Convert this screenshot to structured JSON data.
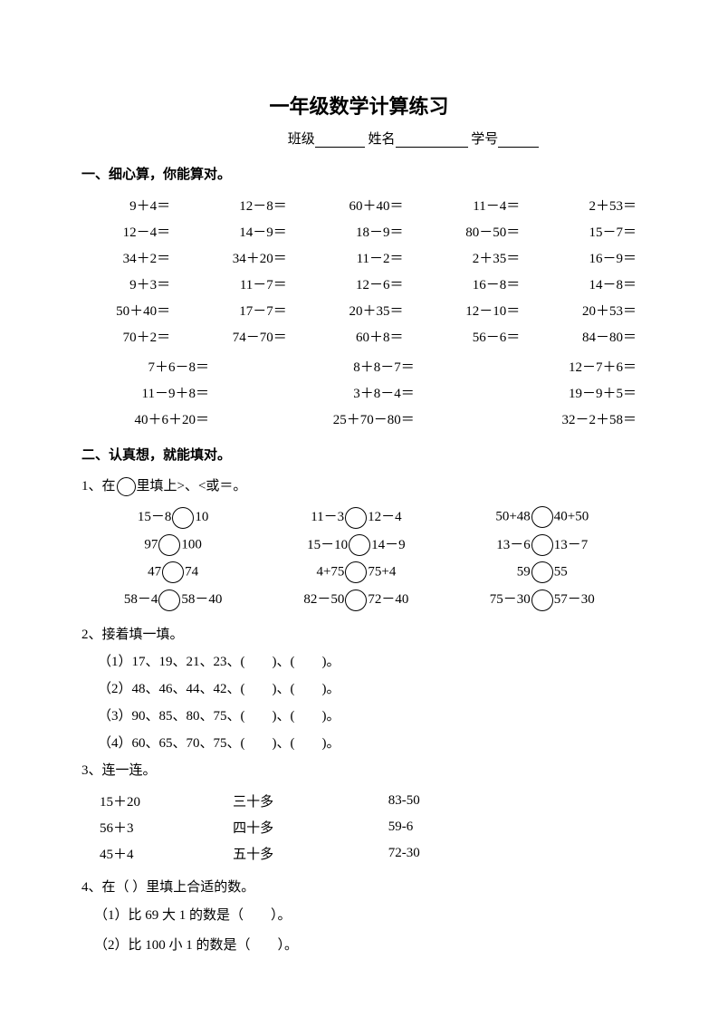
{
  "title": "一年级数学计算练习",
  "info": {
    "class_label": "班级",
    "name_label": "姓名",
    "id_label": "学号"
  },
  "section1": {
    "heading": "一、细心算，你能算对。",
    "rows5": [
      [
        "9＋4＝",
        "12－8＝",
        "60＋40＝",
        "11－4＝",
        "2＋53＝"
      ],
      [
        "12－4＝",
        "14－9＝",
        "18－9＝",
        "80－50＝",
        "15－7＝"
      ],
      [
        "34＋2＝",
        "34＋20＝",
        "11－2＝",
        "2＋35＝",
        "16－9＝"
      ],
      [
        "9＋3＝",
        "11－7＝",
        "12－6＝",
        "16－8＝",
        "14－8＝"
      ],
      [
        "50＋40＝",
        "17－7＝",
        "20＋35＝",
        "12－10＝",
        "20＋53＝"
      ],
      [
        "70＋2＝",
        "74－70＝",
        "60＋8＝",
        "56－6＝",
        "84－80＝"
      ]
    ],
    "rows3": [
      [
        "7＋6－8＝",
        "8＋8－7＝",
        "12－7＋6＝"
      ],
      [
        "11－9＋8＝",
        "3＋8－4＝",
        "19－9＋5＝"
      ],
      [
        "40＋6＋20＝",
        "25＋70－80＝",
        "32－2＋58＝"
      ]
    ]
  },
  "section2": {
    "heading": "二、认真想，就能填对。",
    "q1": {
      "stem_a": "1、在",
      "stem_b": "里填上>、<或＝。",
      "rows": [
        [
          [
            "15－8",
            "10"
          ],
          [
            "11－3",
            "12－4"
          ],
          [
            "50+48",
            "40+50"
          ]
        ],
        [
          [
            "97",
            "100"
          ],
          [
            "15－10",
            "14－9"
          ],
          [
            "13－6",
            "13－7"
          ]
        ],
        [
          [
            "47",
            "74"
          ],
          [
            "4+75",
            "75+4"
          ],
          [
            "59",
            "55"
          ]
        ],
        [
          [
            "58－4",
            "58－40"
          ],
          [
            "82－50",
            "72－40"
          ],
          [
            "75－30",
            "57－30"
          ]
        ]
      ]
    },
    "q2": {
      "stem": "2、接着填一填。",
      "lines": [
        "（1）17、19、21、23、(　　)、(　　)。",
        "（2）48、46、44、42、(　　)、(　　)。",
        "（3）90、85、80、75、(　　)、(　　)。",
        "（4）60、65、70、75、(　　)、(　　)。"
      ]
    },
    "q3": {
      "stem": "3、连一连。",
      "rows": [
        [
          "15＋20",
          "三十多",
          "83-50"
        ],
        [
          "56＋3",
          "四十多",
          "59-6"
        ],
        [
          "45＋4",
          "五十多",
          "72-30"
        ]
      ]
    },
    "q4": {
      "stem": "4、在（ ）里填上合适的数。",
      "lines": [
        "（1）比 69 大 1 的数是（　　）。",
        "（2）比 100 小 1 的数是（　　）。"
      ]
    }
  }
}
